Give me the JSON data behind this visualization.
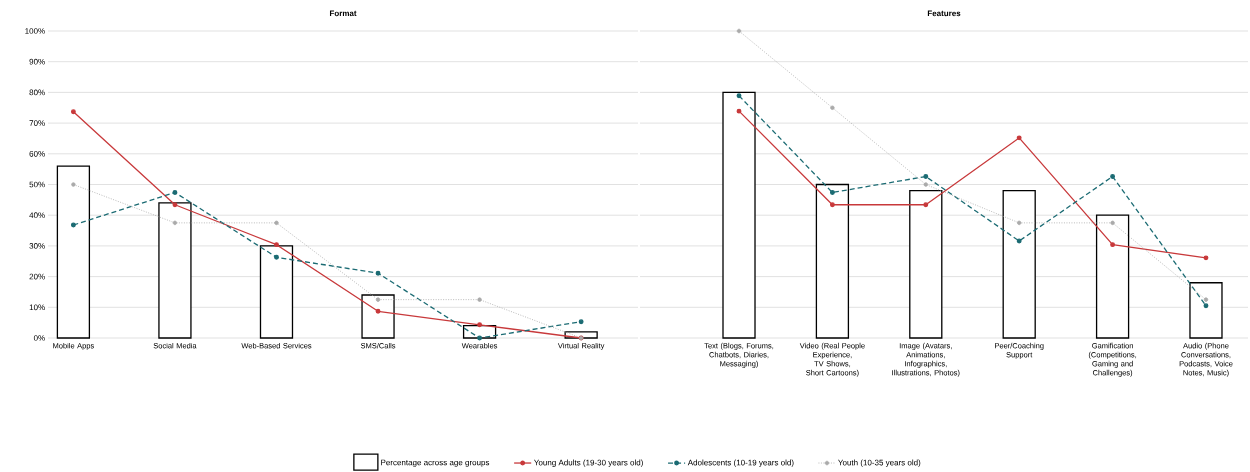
{
  "chart_data": [
    {
      "type": "bar",
      "title": "Format",
      "categories": [
        "Mobile Apps",
        "Social Media",
        "Web-Based Services",
        "SMS/Calls",
        "Wearables",
        "Virtual Reality"
      ],
      "series": [
        {
          "name": "Percentage across age groups",
          "color": "#000000",
          "values": [
            56,
            44,
            30,
            14,
            4,
            2
          ]
        },
        {
          "name": "Young Adults (19-30 years old)",
          "type": "line",
          "color": "#c8393b",
          "line_style": "solid",
          "marker": "circle",
          "values": [
            73.7,
            43.4,
            30.4,
            8.7,
            4.3,
            0
          ]
        },
        {
          "name": "Adolescents (10-19 years old)",
          "type": "line",
          "color": "#1b6b73",
          "line_style": "dashed",
          "marker": "circle",
          "values": [
            36.8,
            47.4,
            26.3,
            21.1,
            0,
            5.3
          ]
        },
        {
          "name": "Youth (10-35 years old)",
          "type": "line",
          "color": "#aaaaaa",
          "line_style": "dotted",
          "marker": "circle",
          "values": [
            50,
            37.5,
            37.5,
            12.5,
            12.5,
            0
          ]
        }
      ],
      "ylim": [
        0,
        100
      ],
      "yticks": [
        {
          "value": 0,
          "label": "0%"
        },
        {
          "value": 10,
          "label": "10%"
        },
        {
          "value": 20,
          "label": "20%"
        },
        {
          "value": 30,
          "label": "30%"
        },
        {
          "value": 40,
          "label": "40%"
        },
        {
          "value": 50,
          "label": "50%"
        },
        {
          "value": 60,
          "label": "60%"
        },
        {
          "value": 70,
          "label": "70%"
        },
        {
          "value": 80,
          "label": "80%"
        },
        {
          "value": 90,
          "label": "90%"
        },
        {
          "value": 100,
          "label": "100%"
        }
      ],
      "grid": "y",
      "legend": "bottom"
    },
    {
      "type": "bar",
      "title": "Features",
      "categories": [
        "Text (Blogs, Forums, Chatbots, Diaries, Messaging)",
        "Video (Real People Experience, TV Shows, Short Cartoons)",
        "Image (Avatars, Animations, Infographics, Illustrations, Photos)",
        "Peer/Coaching Support",
        "Gamification (Competitions, Gaming and Challenges)",
        "Audio (Phone Conversations, Podcasts, Voice Notes, Music)"
      ],
      "series": [
        {
          "color": "#000000",
          "values": [
            80,
            50,
            48,
            48,
            40,
            18
          ]
        },
        {
          "type": "line",
          "color": "#c8393b",
          "line_style": "solid",
          "marker": "circle",
          "values": [
            73.9,
            43.4,
            43.4,
            65.2,
            30.4,
            26.1
          ]
        },
        {
          "type": "line",
          "color": "#1b6b73",
          "line_style": "dashed",
          "marker": "circle",
          "values": [
            78.9,
            47.4,
            52.6,
            31.6,
            52.6,
            10.5
          ]
        },
        {
          "type": "line",
          "color": "#aaaaaa",
          "line_style": "dotted",
          "marker": "circle",
          "values": [
            100,
            75,
            50,
            37.5,
            37.5,
            12.5
          ]
        }
      ],
      "ylim": [
        0,
        100
      ],
      "grid": "y",
      "tick_labels": "x",
      "yticks": [
        0,
        10,
        20,
        30,
        40,
        50,
        60,
        70,
        80,
        90,
        100
      ]
    }
  ]
}
